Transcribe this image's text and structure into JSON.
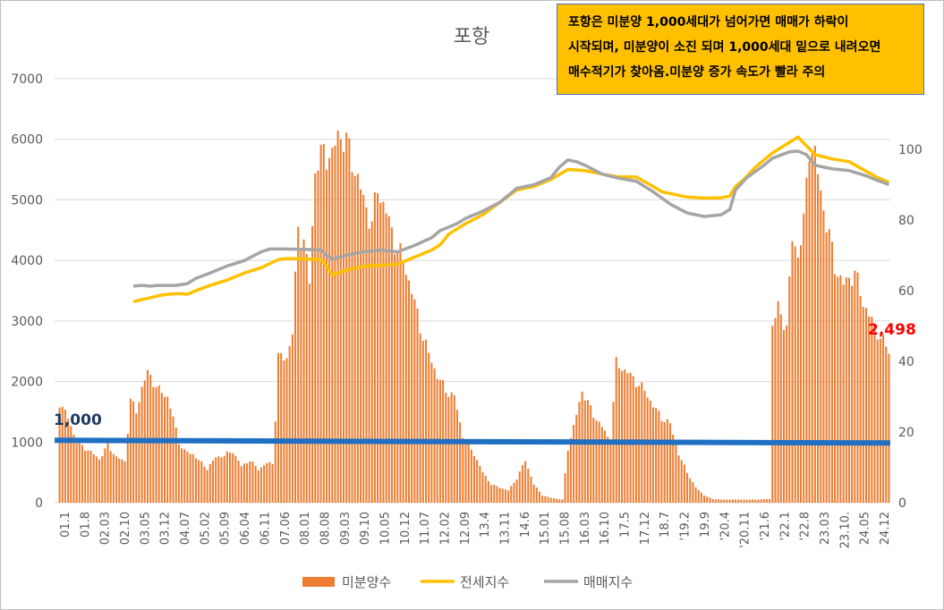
{
  "chart_data": {
    "type": "bar+line",
    "title": "포항",
    "annotation": [
      "포항은 미분양 1,000세대가 넘어가면 매매가 하락이",
      "시작되며, 미분양이 소진 되며 1,000세대 밑으로 내려오면",
      "매수적기가 찾아옴.미분양 증가 속도가 빨라 주의"
    ],
    "y_left": {
      "min": 0,
      "max": 7000,
      "ticks": [
        "0",
        "1000",
        "2000",
        "3000",
        "4000",
        "5000",
        "6000",
        "7000"
      ]
    },
    "y_right": {
      "min": 0,
      "max": 120,
      "ticks": [
        "0",
        "20",
        "40",
        "60",
        "80",
        "100"
      ]
    },
    "x_start": "2001-01",
    "x_end": "2025-05",
    "x_tick_labels": [
      "01.1",
      "01.8",
      "02.03",
      "02.10",
      "03.05",
      "03.12",
      "04.07",
      "05.02",
      "05.09",
      "06.04",
      "06.11",
      "07.06",
      "08.01",
      "08.08",
      "09.03",
      "09.10",
      "10.05",
      "10.12",
      "11.07",
      "12.02",
      "12.09",
      "13.4",
      "13.11",
      "14.6",
      "15.01",
      "15.08",
      "16.03",
      "16.10",
      "17.5",
      "17.12",
      "18.7",
      "'19.2",
      "19.9",
      "'20.4",
      "'20.11",
      "'21.6",
      "'22.1",
      "'22.8",
      "23.03",
      "23.10.",
      "24.05",
      "24.12"
    ],
    "threshold_line": {
      "value": 1000,
      "label": "1,000",
      "color": "#1f6fc2"
    },
    "last_value_label": {
      "value": 2498,
      "label": "2,498",
      "color": "#ff0000"
    },
    "series": [
      {
        "name": "미분양수",
        "type": "bar",
        "axis": "left",
        "color": "#ed7d31",
        "anchors": [
          [
            "2001-01",
            1650
          ],
          [
            "2001-04",
            1400
          ],
          [
            "2001-07",
            1000
          ],
          [
            "2001-10",
            900
          ],
          [
            "2002-01",
            800
          ],
          [
            "2002-03",
            720
          ],
          [
            "2002-06",
            950
          ],
          [
            "2002-09",
            750
          ],
          [
            "2002-12",
            680
          ],
          [
            "2003-02",
            1700
          ],
          [
            "2003-04",
            1500
          ],
          [
            "2003-06",
            1900
          ],
          [
            "2003-08",
            2150
          ],
          [
            "2003-10",
            2000
          ],
          [
            "2003-12",
            1850
          ],
          [
            "2004-03",
            1750
          ],
          [
            "2004-05",
            1400
          ],
          [
            "2004-07",
            1000
          ],
          [
            "2004-09",
            850
          ],
          [
            "2004-12",
            800
          ],
          [
            "2005-02",
            700
          ],
          [
            "2005-05",
            560
          ],
          [
            "2005-08",
            750
          ],
          [
            "2005-11",
            780
          ],
          [
            "2006-02",
            850
          ],
          [
            "2006-05",
            600
          ],
          [
            "2006-08",
            700
          ],
          [
            "2006-11",
            550
          ],
          [
            "2007-02",
            650
          ],
          [
            "2007-04",
            650
          ],
          [
            "2007-05",
            1400
          ],
          [
            "2007-06",
            2400
          ],
          [
            "2007-09",
            2400
          ],
          [
            "2007-11",
            2800
          ],
          [
            "2008-01",
            4550
          ],
          [
            "2008-03",
            4300
          ],
          [
            "2008-05",
            3650
          ],
          [
            "2008-07",
            5500
          ],
          [
            "2008-10",
            5800
          ],
          [
            "2009-01",
            5700
          ],
          [
            "2009-03",
            6100
          ],
          [
            "2009-06",
            5950
          ],
          [
            "2009-09",
            5500
          ],
          [
            "2009-12",
            5000
          ],
          [
            "2010-03",
            4600
          ],
          [
            "2010-05",
            5200
          ],
          [
            "2010-08",
            4800
          ],
          [
            "2010-11",
            4300
          ],
          [
            "2011-02",
            4000
          ],
          [
            "2011-05",
            3500
          ],
          [
            "2011-08",
            2900
          ],
          [
            "2011-11",
            2450
          ],
          [
            "2012-02",
            2100
          ],
          [
            "2012-05",
            1850
          ],
          [
            "2012-08",
            1750
          ],
          [
            "2012-11",
            1100
          ],
          [
            "2013-03",
            800
          ],
          [
            "2013-06",
            500
          ],
          [
            "2013-09",
            300
          ],
          [
            "2013-12",
            250
          ],
          [
            "2014-03",
            200
          ],
          [
            "2014-06",
            400
          ],
          [
            "2014-09",
            700
          ],
          [
            "2014-12",
            300
          ],
          [
            "2015-03",
            120
          ],
          [
            "2015-06",
            80
          ],
          [
            "2015-10",
            50
          ],
          [
            "2015-12",
            900
          ],
          [
            "2016-02",
            1250
          ],
          [
            "2016-05",
            1850
          ],
          [
            "2016-09",
            1450
          ],
          [
            "2016-12",
            1250
          ],
          [
            "2017-03",
            1000
          ],
          [
            "2017-05",
            2300
          ],
          [
            "2017-09",
            2150
          ],
          [
            "2017-12",
            2000
          ],
          [
            "2018-03",
            1850
          ],
          [
            "2018-06",
            1600
          ],
          [
            "2018-09",
            1400
          ],
          [
            "2018-12",
            1300
          ],
          [
            "2019-03",
            800
          ],
          [
            "2019-06",
            500
          ],
          [
            "2019-09",
            250
          ],
          [
            "2019-12",
            120
          ],
          [
            "2020-03",
            60
          ],
          [
            "2020-06",
            50
          ],
          [
            "2020-11",
            50
          ],
          [
            "2021-06",
            50
          ],
          [
            "2021-11",
            60
          ],
          [
            "2021-12",
            2950
          ],
          [
            "2022-02",
            3200
          ],
          [
            "2022-05",
            2900
          ],
          [
            "2022-07",
            4350
          ],
          [
            "2022-09",
            4100
          ],
          [
            "2022-11",
            4600
          ],
          [
            "2023-01",
            5900
          ],
          [
            "2023-03",
            5750
          ],
          [
            "2023-05",
            5100
          ],
          [
            "2023-08",
            4400
          ],
          [
            "2023-10",
            3900
          ],
          [
            "2024-01",
            3600
          ],
          [
            "2024-05",
            3800
          ],
          [
            "2024-08",
            3300
          ],
          [
            "2024-12",
            2900
          ],
          [
            "2025-05",
            2498
          ]
        ]
      },
      {
        "name": "전세지수",
        "type": "line",
        "axis": "right",
        "color": "#ffc000",
        "anchors": [
          [
            "2003-03",
            56.9
          ],
          [
            "2003-06",
            57.5
          ],
          [
            "2003-09",
            58.0
          ],
          [
            "2003-12",
            58.6
          ],
          [
            "2004-03",
            59.0
          ],
          [
            "2004-07",
            59.2
          ],
          [
            "2004-10",
            59.0
          ],
          [
            "2005-01",
            60.0
          ],
          [
            "2005-06",
            61.5
          ],
          [
            "2005-12",
            63.0
          ],
          [
            "2006-06",
            65.0
          ],
          [
            "2006-12",
            66.5
          ],
          [
            "2007-06",
            68.8
          ],
          [
            "2007-09",
            69.1
          ],
          [
            "2008-03",
            69.0
          ],
          [
            "2008-09",
            68.8
          ],
          [
            "2008-11",
            67.0
          ],
          [
            "2009-01",
            64.4
          ],
          [
            "2009-06",
            65.8
          ],
          [
            "2009-12",
            66.9
          ],
          [
            "2010-06",
            67.2
          ],
          [
            "2010-12",
            67.5
          ],
          [
            "2011-06",
            69.5
          ],
          [
            "2011-12",
            71.5
          ],
          [
            "2012-03",
            73.0
          ],
          [
            "2012-06",
            76.0
          ],
          [
            "2012-09",
            77.5
          ],
          [
            "2012-12",
            79.0
          ],
          [
            "2013-06",
            81.5
          ],
          [
            "2013-12",
            85.0
          ],
          [
            "2014-06",
            88.5
          ],
          [
            "2014-12",
            89.5
          ],
          [
            "2015-06",
            91.5
          ],
          [
            "2015-12",
            94.3
          ],
          [
            "2016-06",
            94.0
          ],
          [
            "2016-12",
            93.0
          ],
          [
            "2017-06",
            92.2
          ],
          [
            "2017-12",
            92.2
          ],
          [
            "2018-06",
            89.5
          ],
          [
            "2018-09",
            88.0
          ],
          [
            "2018-12",
            87.5
          ],
          [
            "2019-06",
            86.5
          ],
          [
            "2019-12",
            86.2
          ],
          [
            "2020-06",
            86.3
          ],
          [
            "2020-09",
            86.8
          ],
          [
            "2020-11",
            89.5
          ],
          [
            "2021-02",
            91.5
          ],
          [
            "2021-06",
            95.0
          ],
          [
            "2021-12",
            99.0
          ],
          [
            "2022-06",
            102.0
          ],
          [
            "2022-09",
            103.5
          ],
          [
            "2022-12",
            101.0
          ],
          [
            "2023-03",
            98.5
          ],
          [
            "2023-09",
            97.3
          ],
          [
            "2024-03",
            96.5
          ],
          [
            "2024-09",
            93.8
          ],
          [
            "2025-01",
            92.0
          ],
          [
            "2025-05",
            90.7
          ]
        ]
      },
      {
        "name": "매매지수",
        "type": "line",
        "axis": "right",
        "color": "#a5a5a5",
        "anchors": [
          [
            "2003-03",
            61.3
          ],
          [
            "2003-06",
            61.5
          ],
          [
            "2003-09",
            61.3
          ],
          [
            "2003-12",
            61.5
          ],
          [
            "2004-06",
            61.5
          ],
          [
            "2004-10",
            62.0
          ],
          [
            "2005-01",
            63.5
          ],
          [
            "2005-06",
            65.0
          ],
          [
            "2005-12",
            67.0
          ],
          [
            "2006-06",
            68.5
          ],
          [
            "2006-12",
            71.0
          ],
          [
            "2007-03",
            71.8
          ],
          [
            "2007-09",
            71.8
          ],
          [
            "2008-03",
            71.7
          ],
          [
            "2008-09",
            71.5
          ],
          [
            "2008-11",
            70.0
          ],
          [
            "2009-01",
            69.0
          ],
          [
            "2009-06",
            70.0
          ],
          [
            "2009-12",
            71.0
          ],
          [
            "2010-06",
            71.5
          ],
          [
            "2010-12",
            71.0
          ],
          [
            "2011-06",
            72.8
          ],
          [
            "2011-12",
            75.0
          ],
          [
            "2012-03",
            77.0
          ],
          [
            "2012-09",
            79.0
          ],
          [
            "2012-12",
            80.5
          ],
          [
            "2013-06",
            82.5
          ],
          [
            "2013-12",
            85.0
          ],
          [
            "2014-06",
            89.0
          ],
          [
            "2014-12",
            90.0
          ],
          [
            "2015-06",
            92.0
          ],
          [
            "2015-09",
            95.0
          ],
          [
            "2015-12",
            97.0
          ],
          [
            "2016-03",
            96.5
          ],
          [
            "2016-06",
            95.5
          ],
          [
            "2016-12",
            93.0
          ],
          [
            "2017-06",
            91.8
          ],
          [
            "2017-12",
            91.0
          ],
          [
            "2018-06",
            88.0
          ],
          [
            "2018-12",
            84.5
          ],
          [
            "2019-06",
            82.0
          ],
          [
            "2019-12",
            81.0
          ],
          [
            "2020-06",
            81.5
          ],
          [
            "2020-09",
            83.0
          ],
          [
            "2020-11",
            88.5
          ],
          [
            "2021-03",
            92.0
          ],
          [
            "2021-09",
            95.5
          ],
          [
            "2021-12",
            97.5
          ],
          [
            "2022-06",
            99.3
          ],
          [
            "2022-09",
            99.5
          ],
          [
            "2022-12",
            98.5
          ],
          [
            "2023-03",
            95.5
          ],
          [
            "2023-09",
            94.5
          ],
          [
            "2024-03",
            94.0
          ],
          [
            "2024-09",
            92.5
          ],
          [
            "2025-01",
            91.2
          ],
          [
            "2025-05",
            90.0
          ]
        ]
      }
    ]
  }
}
